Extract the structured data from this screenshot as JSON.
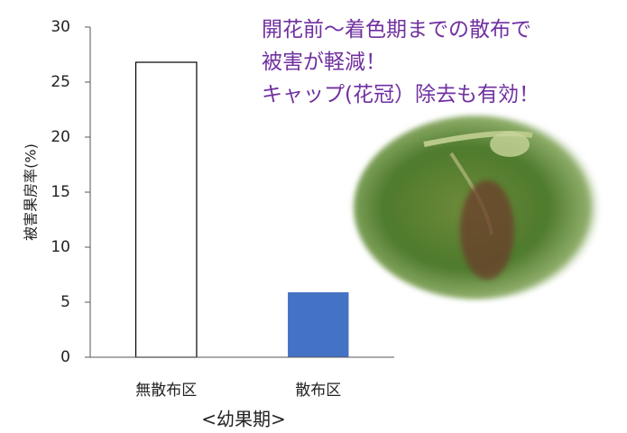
{
  "chart_data": {
    "type": "bar",
    "ylabel": "被害果房率(%)",
    "xlabel": "<幼果期>",
    "categories": [
      "無散布区",
      "散布区"
    ],
    "values": [
      26.8,
      5.9
    ],
    "colors": [
      "#ffffff",
      "#4472c4"
    ],
    "ylim": [
      0,
      30
    ],
    "yticks": [
      0,
      5,
      10,
      15,
      20,
      25,
      30
    ],
    "grid": false,
    "annotation": [
      "開花前～着色期までの散布で",
      "被害が軽減！",
      "キャップ(花冠）除去も有効！"
    ]
  }
}
